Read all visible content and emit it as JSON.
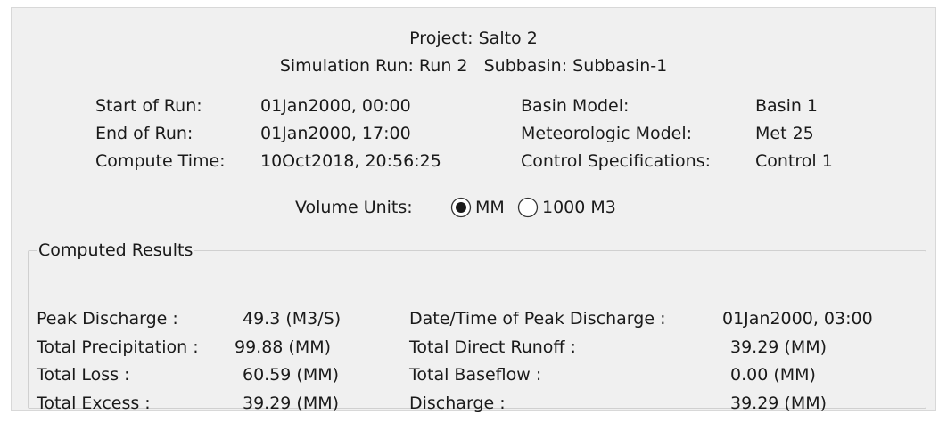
{
  "header": {
    "project": "Project: Salto 2",
    "run": "Simulation Run: Run 2",
    "subbasin": "Subbasin: Subbasin-1"
  },
  "run_info": {
    "rows": [
      [
        "Start of Run:",
        "01Jan2000, 00:00",
        "Basin Model:",
        "Basin 1"
      ],
      [
        "End of Run:",
        "01Jan2000, 17:00",
        "Meteorologic Model:",
        "Met 25"
      ],
      [
        "Compute Time:",
        "10Oct2018, 20:56:25",
        "Control Specifications:",
        "Control 1"
      ]
    ]
  },
  "volume_units": {
    "label": "Volume Units:",
    "options": [
      {
        "label": "MM",
        "selected": true
      },
      {
        "label": "1000 M3",
        "selected": false
      }
    ]
  },
  "results": {
    "title": "Computed Results",
    "rows": [
      [
        "Peak Discharge :",
        "49.3 (M3/S)",
        "Date/Time of Peak Discharge :",
        "01Jan2000, 03:00"
      ],
      [
        "Total Precipitation :",
        "99.88 (MM)",
        "Total Direct Runoff :",
        "39.29 (MM)"
      ],
      [
        "Total Loss :",
        "60.59 (MM)",
        "Total Baseflow :",
        "0.00 (MM)"
      ],
      [
        "Total Excess :",
        "39.29 (MM)",
        "Discharge :",
        "39.29 (MM)"
      ]
    ]
  }
}
